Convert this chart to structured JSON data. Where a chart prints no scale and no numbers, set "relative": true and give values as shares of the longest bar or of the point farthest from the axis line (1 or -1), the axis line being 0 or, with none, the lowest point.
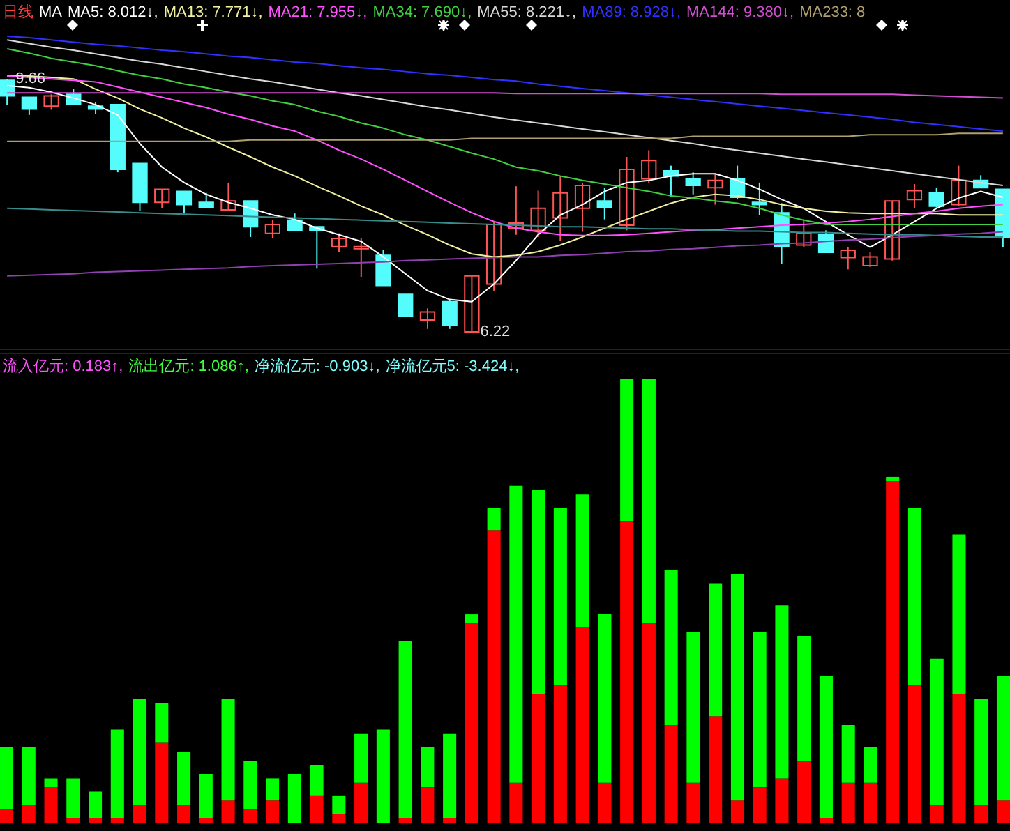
{
  "chart_data": [
    {
      "type": "candlestick",
      "title": "日线",
      "legend_title": "MA",
      "legend": "top",
      "categories": [
        null,
        null,
        null,
        null,
        null,
        null,
        null,
        null,
        null,
        null,
        null,
        null,
        null,
        null,
        null,
        null,
        null,
        null,
        null,
        null,
        null,
        null,
        null,
        null,
        null,
        null,
        null,
        null,
        null,
        null,
        null,
        null,
        null,
        null,
        null,
        null,
        null,
        null,
        null,
        null,
        null,
        null,
        null,
        null,
        null,
        null
      ],
      "ohlc": [
        [
          9.64,
          9.66,
          9.31,
          9.43
        ],
        [
          9.41,
          9.41,
          9.17,
          9.25
        ],
        [
          9.29,
          9.45,
          9.24,
          9.43
        ],
        [
          9.45,
          9.52,
          9.31,
          9.31
        ],
        [
          9.29,
          9.34,
          9.18,
          9.25
        ],
        [
          9.31,
          9.31,
          8.39,
          8.43
        ],
        [
          8.51,
          8.51,
          7.86,
          7.98
        ],
        [
          7.98,
          8.16,
          7.9,
          8.16
        ],
        [
          8.13,
          8.13,
          7.83,
          7.95
        ],
        [
          7.98,
          8.11,
          7.91,
          7.91
        ],
        [
          7.88,
          8.25,
          7.88,
          8.0
        ],
        [
          8.0,
          8.0,
          7.51,
          7.65
        ],
        [
          7.56,
          7.74,
          7.49,
          7.68
        ],
        [
          7.74,
          7.83,
          7.6,
          7.6
        ],
        [
          7.65,
          7.65,
          7.08,
          7.6
        ],
        [
          7.38,
          7.56,
          7.31,
          7.49
        ],
        [
          7.35,
          7.49,
          6.96,
          7.38
        ],
        [
          7.26,
          7.33,
          6.85,
          6.85
        ],
        [
          6.73,
          6.73,
          6.43,
          6.43
        ],
        [
          6.38,
          6.54,
          6.26,
          6.49
        ],
        [
          6.63,
          6.66,
          6.26,
          6.31
        ],
        [
          6.22,
          6.98,
          6.22,
          6.98
        ],
        [
          6.87,
          7.72,
          6.78,
          7.68
        ],
        [
          7.63,
          8.2,
          7.54,
          7.7
        ],
        [
          7.6,
          8.14,
          7.51,
          7.9
        ],
        [
          7.77,
          8.34,
          7.46,
          8.11
        ],
        [
          7.9,
          8.25,
          7.58,
          8.21
        ],
        [
          8.0,
          8.18,
          7.75,
          7.91
        ],
        [
          7.67,
          8.6,
          7.6,
          8.43
        ],
        [
          8.3,
          8.69,
          8.25,
          8.55
        ],
        [
          8.41,
          8.48,
          8.05,
          8.34
        ],
        [
          8.3,
          8.39,
          8.09,
          8.21
        ],
        [
          8.18,
          8.37,
          7.95,
          8.28
        ],
        [
          8.3,
          8.48,
          8.02,
          8.05
        ],
        [
          7.98,
          8.25,
          7.81,
          7.95
        ],
        [
          7.84,
          7.97,
          7.14,
          7.38
        ],
        [
          7.4,
          7.75,
          7.37,
          7.56
        ],
        [
          7.54,
          7.6,
          7.3,
          7.3
        ],
        [
          7.23,
          7.37,
          7.07,
          7.33
        ],
        [
          7.12,
          7.31,
          7.1,
          7.24
        ],
        [
          7.21,
          8.0,
          7.19,
          8.0
        ],
        [
          8.02,
          8.23,
          7.9,
          8.14
        ],
        [
          8.11,
          8.18,
          7.91,
          7.93
        ],
        [
          7.95,
          8.48,
          7.93,
          8.28
        ],
        [
          8.28,
          8.35,
          8.18,
          8.18
        ],
        [
          8.16,
          8.16,
          7.37,
          7.51
        ]
      ],
      "colors": [
        "#54fcfc",
        "#54fcfc",
        "#ff5454",
        "#54fcfc",
        "#54fcfc",
        "#54fcfc",
        "#54fcfc",
        "#ff5454",
        "#54fcfc",
        "#54fcfc",
        "#ff5454",
        "#54fcfc",
        "#ff5454",
        "#54fcfc",
        "#54fcfc",
        "#ff5454",
        "#ff5454",
        "#54fcfc",
        "#54fcfc",
        "#ff5454",
        "#54fcfc",
        "#ff5454",
        "#ff5454",
        "#ff5454",
        "#ff5454",
        "#ff5454",
        "#ff5454",
        "#54fcfc",
        "#ff5454",
        "#ff5454",
        "#54fcfc",
        "#54fcfc",
        "#ff5454",
        "#54fcfc",
        "#54fcfc",
        "#54fcfc",
        "#ff5454",
        "#54fcfc",
        "#ff5454",
        "#ff5454",
        "#ff5454",
        "#ff5454",
        "#54fcfc",
        "#ff5454",
        "#54fcfc",
        "#54fcfc"
      ],
      "series": [
        {
          "type": "line",
          "name": "MA5: 8.012↓,",
          "color": "#ffffff",
          "values": [
            9.57,
            9.54,
            9.48,
            9.4,
            9.31,
            9.17,
            8.78,
            8.46,
            8.25,
            8.09,
            7.98,
            7.9,
            7.81,
            7.75,
            7.63,
            7.54,
            7.45,
            7.24,
            7.01,
            6.78,
            6.66,
            6.63,
            6.87,
            7.19,
            7.54,
            7.81,
            7.95,
            8.13,
            8.25,
            8.28,
            8.34,
            8.37,
            8.37,
            8.28,
            8.16,
            8.02,
            7.9,
            7.72,
            7.54,
            7.37,
            7.54,
            7.72,
            7.9,
            8.04,
            8.13,
            8.05
          ]
        },
        {
          "type": "line",
          "name": "MA13: 7.771↓,",
          "color": "#f0f0a0",
          "values": [
            9.71,
            9.7,
            9.68,
            9.66,
            9.52,
            9.4,
            9.25,
            9.13,
            8.99,
            8.87,
            8.73,
            8.6,
            8.46,
            8.34,
            8.2,
            8.07,
            7.93,
            7.81,
            7.67,
            7.54,
            7.4,
            7.28,
            7.24,
            7.26,
            7.31,
            7.4,
            7.51,
            7.63,
            7.75,
            7.86,
            7.97,
            8.05,
            8.09,
            8.07,
            8.02,
            7.95,
            7.9,
            7.86,
            7.84,
            7.83,
            7.83,
            7.83,
            7.83,
            7.81,
            7.81,
            7.81
          ]
        },
        {
          "type": "line",
          "name": "MA21: 7.955↓,",
          "color": "#ff50ff",
          "values": [
            9.7,
            9.68,
            9.66,
            9.64,
            9.62,
            9.55,
            9.48,
            9.41,
            9.34,
            9.27,
            9.18,
            9.11,
            9.02,
            8.95,
            8.83,
            8.69,
            8.57,
            8.43,
            8.28,
            8.13,
            7.98,
            7.84,
            7.72,
            7.63,
            7.58,
            7.54,
            7.53,
            7.53,
            7.54,
            7.56,
            7.58,
            7.6,
            7.61,
            7.63,
            7.65,
            7.67,
            7.68,
            7.7,
            7.72,
            7.75,
            7.79,
            7.83,
            7.86,
            7.9,
            7.93,
            7.95
          ]
        },
        {
          "type": "line",
          "name": "MA34: 7.690↓,",
          "color": "#40d040",
          "values": [
            10.07,
            10.01,
            9.94,
            9.89,
            9.84,
            9.77,
            9.71,
            9.66,
            9.59,
            9.54,
            9.48,
            9.43,
            9.36,
            9.31,
            9.22,
            9.15,
            9.06,
            8.99,
            8.9,
            8.83,
            8.74,
            8.65,
            8.57,
            8.46,
            8.41,
            8.34,
            8.28,
            8.23,
            8.18,
            8.13,
            8.07,
            8.04,
            8.0,
            7.97,
            7.9,
            7.81,
            7.74,
            7.68,
            7.68,
            7.68,
            7.68,
            7.68,
            7.68,
            7.68,
            7.68,
            7.68
          ]
        },
        {
          "type": "line",
          "name": "MA55: 8.221↓,",
          "color": "#d8d8d8",
          "values": [
            10.19,
            10.14,
            10.09,
            10.05,
            10.0,
            9.95,
            9.9,
            9.86,
            9.81,
            9.76,
            9.71,
            9.66,
            9.62,
            9.57,
            9.52,
            9.47,
            9.43,
            9.38,
            9.33,
            9.28,
            9.24,
            9.19,
            9.14,
            9.1,
            9.06,
            9.02,
            8.98,
            8.94,
            8.9,
            8.86,
            8.82,
            8.78,
            8.73,
            8.69,
            8.65,
            8.61,
            8.57,
            8.53,
            8.49,
            8.45,
            8.41,
            8.37,
            8.33,
            8.29,
            8.25,
            8.21
          ]
        },
        {
          "type": "line",
          "name": "MA89: 8.928↓,",
          "color": "#3030ff",
          "values": [
            10.24,
            10.22,
            10.19,
            10.16,
            10.13,
            10.11,
            10.08,
            10.05,
            10.03,
            10.0,
            9.97,
            9.95,
            9.92,
            9.89,
            9.87,
            9.84,
            9.81,
            9.79,
            9.76,
            9.73,
            9.71,
            9.68,
            9.65,
            9.63,
            9.59,
            9.56,
            9.53,
            9.5,
            9.47,
            9.44,
            9.41,
            9.38,
            9.35,
            9.32,
            9.29,
            9.26,
            9.23,
            9.2,
            9.17,
            9.14,
            9.11,
            9.07,
            9.04,
            9.01,
            8.98,
            8.95
          ]
        },
        {
          "type": "line",
          "name": "MA144: 9.380↓,",
          "color": "#d050d0",
          "values": [
            9.47,
            9.47,
            9.47,
            9.47,
            9.47,
            9.47,
            9.47,
            9.47,
            9.47,
            9.47,
            9.47,
            9.47,
            9.47,
            9.47,
            9.47,
            9.47,
            9.47,
            9.47,
            9.47,
            9.47,
            9.47,
            9.47,
            9.47,
            9.46,
            9.46,
            9.46,
            9.46,
            9.46,
            9.46,
            9.46,
            9.46,
            9.46,
            9.46,
            9.46,
            9.46,
            9.45,
            9.45,
            9.45,
            9.45,
            9.45,
            9.45,
            9.44,
            9.43,
            9.42,
            9.41,
            9.4
          ]
        },
        {
          "type": "line",
          "name": "MA233: 8",
          "color": "#b0a070",
          "values": [
            8.81,
            8.81,
            8.81,
            8.81,
            8.81,
            8.81,
            8.81,
            8.81,
            8.81,
            8.81,
            8.81,
            8.83,
            8.83,
            8.83,
            8.83,
            8.83,
            8.83,
            8.83,
            8.83,
            8.83,
            8.83,
            8.85,
            8.85,
            8.85,
            8.85,
            8.85,
            8.85,
            8.85,
            8.85,
            8.85,
            8.85,
            8.88,
            8.88,
            8.88,
            8.88,
            8.88,
            8.88,
            8.88,
            8.88,
            8.9,
            8.9,
            8.9,
            8.9,
            8.92,
            8.92,
            8.92
          ]
        },
        {
          "type": "line",
          "color": "#3a8c8c",
          "values": [
            7.9,
            7.89,
            7.88,
            7.87,
            7.86,
            7.85,
            7.84,
            7.83,
            7.82,
            7.81,
            7.8,
            7.79,
            7.78,
            7.77,
            7.76,
            7.75,
            7.74,
            7.73,
            7.72,
            7.71,
            7.7,
            7.69,
            7.68,
            7.67,
            7.66,
            7.65,
            7.65,
            7.64,
            7.63,
            7.62,
            7.62,
            7.61,
            7.6,
            7.59,
            7.59,
            7.58,
            7.57,
            7.57,
            7.56,
            7.55,
            7.54,
            7.54,
            7.53,
            7.52,
            7.51,
            7.51
          ]
        },
        {
          "type": "line",
          "color": "#9040b0",
          "values": [
            6.98,
            6.99,
            7.0,
            7.01,
            7.03,
            7.04,
            7.05,
            7.06,
            7.07,
            7.08,
            7.09,
            7.11,
            7.12,
            7.13,
            7.14,
            7.15,
            7.16,
            7.17,
            7.19,
            7.2,
            7.21,
            7.22,
            7.23,
            7.24,
            7.24,
            7.26,
            7.27,
            7.29,
            7.31,
            7.32,
            7.34,
            7.35,
            7.37,
            7.39,
            7.4,
            7.42,
            7.43,
            7.45,
            7.47,
            7.48,
            7.5,
            7.52,
            7.53,
            7.55,
            7.56,
            7.58
          ]
        }
      ],
      "annotations": [
        {
          "text": "9.66",
          "y": 9.66
        },
        "6.22"
      ]
    },
    {
      "type": "bar",
      "stacked": true,
      "relative": true,
      "categories": [
        null,
        null,
        null,
        null,
        null,
        null,
        null,
        null,
        null,
        null,
        null,
        null,
        null,
        null,
        null,
        null,
        null,
        null,
        null,
        null,
        null,
        null,
        null,
        null,
        null,
        null,
        null,
        null,
        null,
        null,
        null,
        null,
        null,
        null,
        null,
        null,
        null,
        null,
        null,
        null,
        null,
        null,
        null,
        null,
        null,
        null
      ],
      "series": [
        {
          "color": "#ff0000",
          "values": [
            0.03,
            0.04,
            0.08,
            0.01,
            0.01,
            0.01,
            0.04,
            0.18,
            0.04,
            0.01,
            0.05,
            0.03,
            0.05,
            0,
            0.06,
            0.02,
            0.09,
            0,
            0.01,
            0.08,
            0.01,
            0.45,
            0.66,
            0.09,
            0.29,
            0.31,
            0.44,
            0.09,
            0.68,
            0.45,
            0.22,
            0.09,
            0.24,
            0.05,
            0.08,
            0.1,
            0.14,
            0.01,
            0.09,
            0.09,
            0.77,
            0.31,
            0.04,
            0.29,
            0.04,
            0.05
          ]
        },
        {
          "color": "#00ff00",
          "values": [
            0.14,
            0.13,
            0.02,
            0.09,
            0.06,
            0.2,
            0.24,
            0.09,
            0.12,
            0.1,
            0.23,
            0.11,
            0.05,
            0.11,
            0.07,
            0.04,
            0.11,
            0.21,
            0.4,
            0.09,
            0.19,
            0.02,
            0.05,
            0.67,
            0.46,
            0.4,
            0.3,
            0.38,
            0.32,
            0.55,
            0.35,
            0.34,
            0.3,
            0.51,
            0.35,
            0.39,
            0.28,
            0.32,
            0.13,
            0.08,
            0.01,
            0.4,
            0.33,
            0.36,
            0.24,
            0.28
          ]
        }
      ],
      "annotations": [
        "流入亿元: 0.183↑,",
        "流出亿元: 1.086↑,",
        "净流亿元: -0.903↓,",
        "净流亿元5: -3.424↓,"
      ]
    }
  ]
}
